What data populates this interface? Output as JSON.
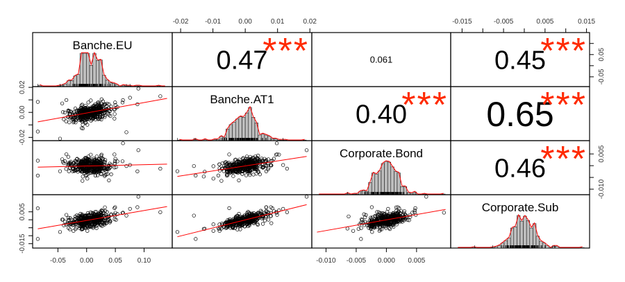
{
  "chart_data": {
    "type": "scatter",
    "title": "",
    "variables": [
      "Banche.EU",
      "Banche.AT1",
      "Corporate.Bond",
      "Corporate.Sub"
    ],
    "ranges": {
      "Banche.EU": [
        -0.085,
        0.14
      ],
      "Banche.AT1": [
        -0.021,
        0.019
      ],
      "Corporate.Bond": [
        -0.0115,
        0.0098
      ],
      "Corporate.Sub": [
        -0.0165,
        0.0145
      ]
    },
    "correlations": [
      {
        "row": 0,
        "col": 1,
        "value": "0.47",
        "stars": "***"
      },
      {
        "row": 0,
        "col": 2,
        "value": "0.061",
        "stars": ""
      },
      {
        "row": 0,
        "col": 3,
        "value": "0.45",
        "stars": "***"
      },
      {
        "row": 1,
        "col": 2,
        "value": "0.40",
        "stars": "***"
      },
      {
        "row": 1,
        "col": 3,
        "value": "0.65",
        "stars": "***"
      },
      {
        "row": 2,
        "col": 3,
        "value": "0.46",
        "stars": "***"
      }
    ],
    "axes": {
      "top_col2": {
        "ticks": [
          -0.02,
          -0.01,
          0.0,
          0.01,
          0.02
        ],
        "labels": [
          "-0.02",
          "-0.01",
          "0.00",
          "0.01",
          "0.02"
        ]
      },
      "top_col4": {
        "ticks": [
          -0.015,
          -0.01,
          -0.005,
          0.0,
          0.005,
          0.01,
          0.015
        ],
        "labels": [
          "-0.015",
          "",
          "-0.005",
          "",
          "0.005",
          "",
          "0.015"
        ]
      },
      "bottom_col1": {
        "ticks": [
          -0.05,
          0.0,
          0.05,
          0.1
        ],
        "labels": [
          "-0.05",
          "0.00",
          "0.05",
          "0.10"
        ]
      },
      "bottom_col3": {
        "ticks": [
          -0.01,
          -0.005,
          0.0,
          0.005
        ],
        "labels": [
          "-0.010",
          "-0.005",
          "0.000",
          "0.005"
        ]
      },
      "left_row2": {
        "ticks": [
          0.02,
          0.01,
          0.0,
          -0.01,
          -0.02
        ],
        "labels": [
          "0.02",
          "",
          "0.00",
          "",
          "-0.02"
        ]
      },
      "left_row4": {
        "ticks": [
          0.005,
          0.0,
          -0.005,
          -0.01,
          -0.015
        ],
        "labels": [
          "0.005",
          "",
          "",
          "",
          "-0.015"
        ]
      },
      "right_row1": {
        "ticks": [
          0.1,
          0.05,
          0.0,
          -0.05
        ],
        "labels": [
          "",
          "0.05",
          "",
          "-0.05"
        ]
      },
      "right_row3": {
        "ticks": [
          0.005,
          0.0,
          -0.005,
          -0.01
        ],
        "labels": [
          "0.005",
          "",
          "",
          "-0.010"
        ]
      }
    },
    "colors": {
      "fit_line": "#ff0000",
      "stars": "#ff2a00",
      "hist_fill": "#bebebe"
    }
  }
}
